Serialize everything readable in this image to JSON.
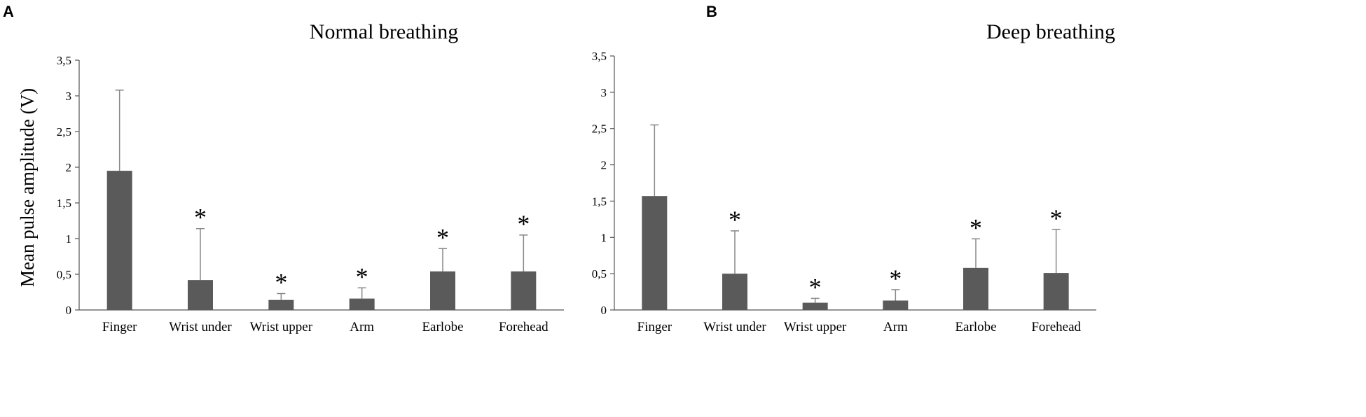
{
  "chart_data": [
    {
      "type": "bar",
      "panel": "A",
      "title": "Normal breathing",
      "ylabel": "Mean pulse amplitude (V)",
      "xlabel": "",
      "ylim": [
        0,
        3.5
      ],
      "yticks": [
        "0",
        "0,5",
        "1",
        "1,5",
        "2",
        "2,5",
        "3",
        "3,5"
      ],
      "categories": [
        "Finger",
        "Wrist under",
        "Wrist upper",
        "Arm",
        "Earlobe",
        "Forehead"
      ],
      "values": [
        1.95,
        0.42,
        0.14,
        0.16,
        0.54,
        0.54
      ],
      "error_upper": [
        3.08,
        1.14,
        0.23,
        0.31,
        0.86,
        1.05
      ],
      "annotations": [
        "",
        "*",
        "*",
        "*",
        "*",
        "*"
      ],
      "color": "#5a5a5a"
    },
    {
      "type": "bar",
      "panel": "B",
      "title": "Deep breathing",
      "ylabel": "",
      "xlabel": "",
      "ylim": [
        0,
        3.5
      ],
      "yticks": [
        "0",
        "0,5",
        "1",
        "1,5",
        "2",
        "2,5",
        "3",
        "3,5"
      ],
      "categories": [
        "Finger",
        "Wrist under",
        "Wrist upper",
        "Arm",
        "Earlobe",
        "Forehead"
      ],
      "values": [
        1.57,
        0.5,
        0.1,
        0.13,
        0.58,
        0.51
      ],
      "error_upper": [
        2.55,
        1.09,
        0.16,
        0.28,
        0.98,
        1.11
      ],
      "annotations": [
        "",
        "*",
        "*",
        "*",
        "*",
        "*"
      ],
      "color": "#5a5a5a"
    }
  ]
}
